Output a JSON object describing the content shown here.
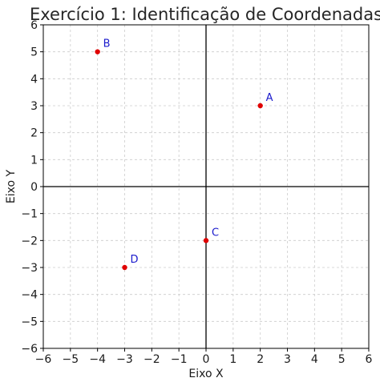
{
  "chart_data": {
    "type": "scatter",
    "title": "Exercício 1: Identificação de Coordenadas",
    "xlabel": "Eixo X",
    "ylabel": "Eixo Y",
    "xlim": [
      -6,
      6
    ],
    "ylim": [
      -6,
      6
    ],
    "xticks": [
      -6,
      -5,
      -4,
      -3,
      -2,
      -1,
      0,
      1,
      2,
      3,
      4,
      5,
      6
    ],
    "yticks": [
      -6,
      -5,
      -4,
      -3,
      -2,
      -1,
      0,
      1,
      2,
      3,
      4,
      5,
      6
    ],
    "xtick_labels": [
      "−6",
      "−5",
      "−4",
      "−3",
      "−2",
      "−1",
      "0",
      "1",
      "2",
      "3",
      "4",
      "5",
      "6"
    ],
    "ytick_labels": [
      "−6",
      "−5",
      "−4",
      "−3",
      "−2",
      "−1",
      "0",
      "1",
      "2",
      "3",
      "4",
      "5",
      "6"
    ],
    "grid": true,
    "grid_style": "dashed",
    "points": [
      {
        "label": "A",
        "x": 2,
        "y": 3
      },
      {
        "label": "B",
        "x": -4,
        "y": 5
      },
      {
        "label": "C",
        "x": 0,
        "y": -2
      },
      {
        "label": "D",
        "x": -3,
        "y": -3
      }
    ],
    "colors": {
      "point": "#e00000",
      "label": "#1a1acc",
      "axis": "#000000",
      "grid": "#cccccc"
    }
  }
}
